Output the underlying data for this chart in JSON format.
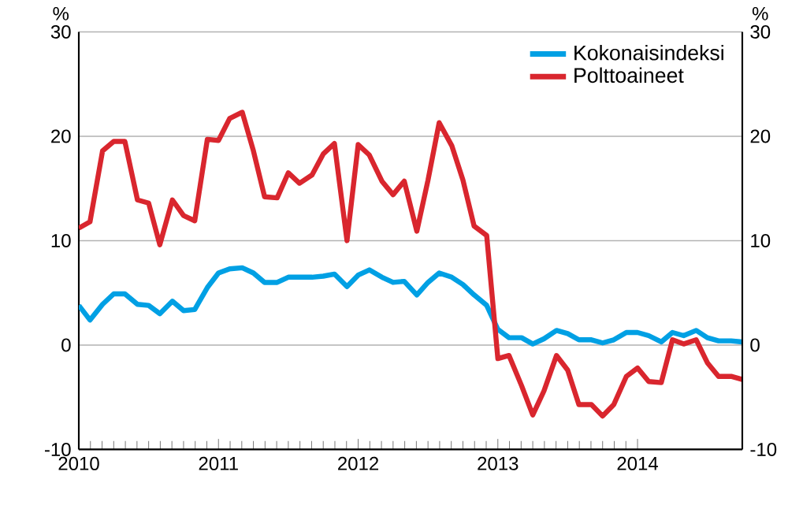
{
  "chart_data": {
    "type": "line",
    "ylabel": "%",
    "y2label": "%",
    "x": [
      "2010-01",
      "2010-02",
      "2010-03",
      "2010-04",
      "2010-05",
      "2010-06",
      "2010-07",
      "2010-08",
      "2010-09",
      "2010-10",
      "2010-11",
      "2010-12",
      "2011-01",
      "2011-02",
      "2011-03",
      "2011-04",
      "2011-05",
      "2011-06",
      "2011-07",
      "2011-08",
      "2011-09",
      "2011-10",
      "2011-11",
      "2011-12",
      "2012-01",
      "2012-02",
      "2012-03",
      "2012-04",
      "2012-05",
      "2012-06",
      "2012-07",
      "2012-08",
      "2012-09",
      "2012-10",
      "2012-11",
      "2012-12",
      "2013-01",
      "2013-02",
      "2013-03",
      "2013-04",
      "2013-05",
      "2013-06",
      "2013-07",
      "2013-08",
      "2013-09",
      "2013-10",
      "2013-11",
      "2013-12",
      "2014-01",
      "2014-02",
      "2014-03",
      "2014-04",
      "2014-05",
      "2014-06",
      "2014-07",
      "2014-08",
      "2014-09",
      "2014-10"
    ],
    "series": [
      {
        "name": "Kokonaisindeksi",
        "color": "#00a0e4",
        "values": [
          3.8,
          2.4,
          3.9,
          4.9,
          4.9,
          3.9,
          3.8,
          3.0,
          4.2,
          3.3,
          3.4,
          5.5,
          6.9,
          7.3,
          7.4,
          6.9,
          6.0,
          6.0,
          6.5,
          6.5,
          6.5,
          6.6,
          6.8,
          5.6,
          6.7,
          7.2,
          6.5,
          6.0,
          6.1,
          4.8,
          6.0,
          6.9,
          6.5,
          5.8,
          4.8,
          3.8,
          1.5,
          0.7,
          0.7,
          0.1,
          0.6,
          1.4,
          1.1,
          0.5,
          0.5,
          0.2,
          0.5,
          1.2,
          1.2,
          0.9,
          0.3,
          1.2,
          0.9,
          1.4,
          0.7,
          0.4,
          0.4,
          0.3
        ]
      },
      {
        "name": "Polttoaineet",
        "color": "#d9262e",
        "values": [
          11.2,
          11.8,
          18.6,
          19.5,
          19.5,
          13.9,
          13.6,
          9.6,
          13.9,
          12.4,
          11.9,
          19.7,
          19.6,
          21.7,
          22.3,
          18.6,
          14.2,
          14.1,
          16.5,
          15.5,
          16.3,
          18.3,
          19.3,
          10.0,
          19.2,
          18.2,
          15.7,
          14.4,
          15.7,
          10.9,
          15.8,
          21.3,
          19.1,
          15.8,
          11.4,
          10.5,
          -1.3,
          -1.0,
          -3.9,
          -6.7,
          -4.4,
          -1.0,
          -2.4,
          -5.7,
          -5.7,
          -6.8,
          -5.7,
          -3.0,
          -2.2,
          -3.5,
          -3.6,
          0.5,
          0.1,
          0.5,
          -1.7,
          -3.0,
          -3.0,
          -3.3
        ]
      }
    ],
    "xlim": [
      "2010-01",
      "2014-10"
    ],
    "xticks": [
      "2010",
      "2011",
      "2012",
      "2013",
      "2014"
    ],
    "ylim": [
      -10,
      30
    ],
    "yticks": [
      -10,
      0,
      10,
      20,
      30
    ],
    "y2lim": [
      -10,
      30
    ],
    "y2ticks": [
      -10,
      0,
      10,
      20,
      30
    ],
    "grid": "y",
    "legend": "top right"
  }
}
